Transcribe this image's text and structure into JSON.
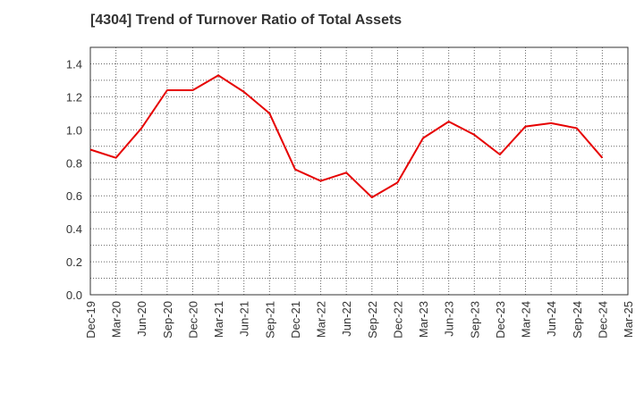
{
  "chart_data": {
    "type": "line",
    "title": "[4304]  Trend of Turnover Ratio of Total Assets",
    "xlabel": "",
    "ylabel": "",
    "ylim": [
      0,
      1.5
    ],
    "yticks": [
      "0.0",
      "0.2",
      "0.4",
      "0.6",
      "0.8",
      "1.0",
      "1.2",
      "1.4"
    ],
    "xticks": [
      "Dec-19",
      "Mar-20",
      "Jun-20",
      "Sep-20",
      "Dec-20",
      "Mar-21",
      "Jun-21",
      "Sep-21",
      "Dec-21",
      "Mar-22",
      "Jun-22",
      "Sep-22",
      "Dec-22",
      "Mar-23",
      "Jun-23",
      "Sep-23",
      "Dec-23",
      "Mar-24",
      "Jun-24",
      "Sep-24",
      "Dec-24",
      "Mar-25"
    ],
    "grid": true,
    "legend": "none",
    "series": [
      {
        "color": "#e60000",
        "x": [
          "Dec-19",
          "Mar-20",
          "Jun-20",
          "Sep-20",
          "Dec-20",
          "Mar-21",
          "Jun-21",
          "Sep-21",
          "Dec-21",
          "Mar-22",
          "Jun-22",
          "Sep-22",
          "Dec-22",
          "Mar-23",
          "Jun-23",
          "Sep-23",
          "Dec-23",
          "Mar-24",
          "Jun-24",
          "Sep-24",
          "Dec-24"
        ],
        "values": [
          0.88,
          0.83,
          1.01,
          1.24,
          1.24,
          1.33,
          1.23,
          1.1,
          0.76,
          0.69,
          0.74,
          0.59,
          0.68,
          0.95,
          1.05,
          0.97,
          0.85,
          1.02,
          1.04,
          1.01,
          0.83
        ]
      }
    ]
  }
}
